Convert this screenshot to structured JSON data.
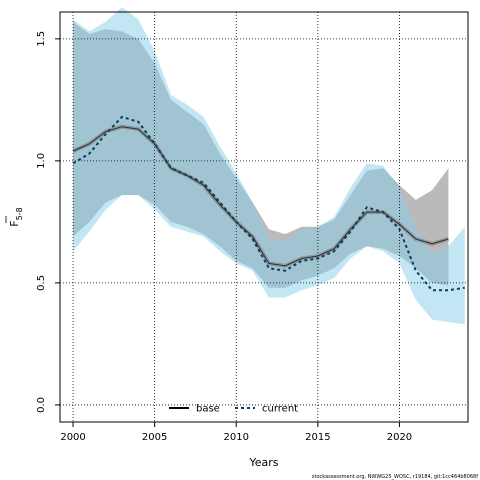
{
  "chart_data": {
    "type": "line",
    "xlabel": "Years",
    "ylabel": "F",
    "ylabel_sub": "5-8",
    "xlim": [
      1999.2,
      2024.2
    ],
    "ylim": [
      -0.07,
      1.61
    ],
    "xticks": [
      2000,
      2005,
      2010,
      2015,
      2020
    ],
    "yticks": [
      0.0,
      0.5,
      1.0,
      1.5
    ],
    "ytick_labels": [
      "0.0",
      "0.5",
      "1.0",
      "1.5"
    ],
    "grid": true,
    "legend_position": "bottom",
    "footer_text": "stockassessment.org, NWWG25_WOSC, r19184, git:1cc464b8068f",
    "colors": {
      "base_line": "#000000",
      "base_band": "#a9a9a9",
      "current_line": "#0b3c5d",
      "current_band": "#87ceeb"
    },
    "series": [
      {
        "name": "base",
        "x": [
          2000,
          2001,
          2002,
          2003,
          2004,
          2005,
          2006,
          2007,
          2008,
          2009,
          2010,
          2011,
          2012,
          2013,
          2014,
          2015,
          2016,
          2017,
          2018,
          2019,
          2020,
          2021,
          2022,
          2023
        ],
        "values": [
          1.04,
          1.07,
          1.12,
          1.14,
          1.13,
          1.07,
          0.97,
          0.94,
          0.9,
          0.82,
          0.75,
          0.69,
          0.58,
          0.57,
          0.6,
          0.61,
          0.64,
          0.72,
          0.79,
          0.79,
          0.74,
          0.68,
          0.66,
          0.68
        ],
        "lower": [
          0.69,
          0.75,
          0.83,
          0.86,
          0.86,
          0.82,
          0.75,
          0.73,
          0.7,
          0.65,
          0.59,
          0.56,
          0.48,
          0.48,
          0.51,
          0.53,
          0.56,
          0.62,
          0.65,
          0.64,
          0.61,
          0.56,
          0.5,
          0.49
        ],
        "upper": [
          1.57,
          1.52,
          1.54,
          1.53,
          1.5,
          1.4,
          1.25,
          1.2,
          1.15,
          1.03,
          0.93,
          0.83,
          0.72,
          0.7,
          0.73,
          0.73,
          0.76,
          0.86,
          0.96,
          0.97,
          0.9,
          0.84,
          0.88,
          0.97
        ]
      },
      {
        "name": "current",
        "x": [
          2000,
          2001,
          2002,
          2003,
          2004,
          2005,
          2006,
          2007,
          2008,
          2009,
          2010,
          2011,
          2012,
          2013,
          2014,
          2015,
          2016,
          2017,
          2018,
          2019,
          2020,
          2021,
          2022,
          2023,
          2024
        ],
        "values": [
          0.99,
          1.03,
          1.11,
          1.18,
          1.16,
          1.07,
          0.97,
          0.94,
          0.91,
          0.83,
          0.75,
          0.68,
          0.56,
          0.55,
          0.59,
          0.6,
          0.63,
          0.71,
          0.81,
          0.79,
          0.72,
          0.55,
          0.47,
          0.47,
          0.48
        ],
        "lower": [
          0.63,
          0.71,
          0.8,
          0.86,
          0.86,
          0.8,
          0.73,
          0.71,
          0.69,
          0.63,
          0.58,
          0.55,
          0.44,
          0.44,
          0.47,
          0.49,
          0.52,
          0.6,
          0.65,
          0.63,
          0.58,
          0.43,
          0.35,
          0.34,
          0.33
        ],
        "upper": [
          1.58,
          1.53,
          1.57,
          1.63,
          1.58,
          1.45,
          1.27,
          1.23,
          1.18,
          1.06,
          0.95,
          0.83,
          0.68,
          0.67,
          0.72,
          0.73,
          0.77,
          0.89,
          0.99,
          0.98,
          0.89,
          0.72,
          0.62,
          0.65,
          0.73
        ]
      }
    ]
  }
}
